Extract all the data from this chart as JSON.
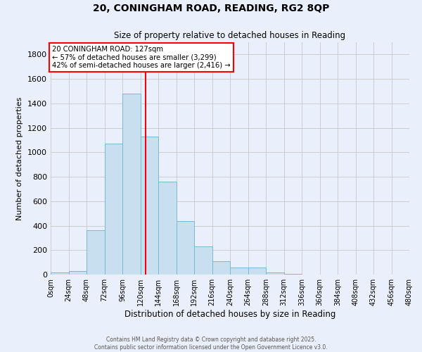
{
  "title": "20, CONINGHAM ROAD, READING, RG2 8QP",
  "subtitle": "Size of property relative to detached houses in Reading",
  "xlabel": "Distribution of detached houses by size in Reading",
  "ylabel": "Number of detached properties",
  "bin_edges": [
    0,
    24,
    48,
    72,
    96,
    120,
    144,
    168,
    192,
    216,
    240,
    264,
    288,
    312,
    336,
    360,
    384,
    408,
    432,
    456,
    480
  ],
  "bar_heights": [
    15,
    30,
    360,
    1070,
    1480,
    1130,
    760,
    440,
    230,
    110,
    55,
    55,
    15,
    5,
    0,
    0,
    0,
    0,
    0,
    0
  ],
  "bar_color": "#c8dff0",
  "bar_edge_color": "#7bb8d8",
  "vline_x": 127,
  "vline_color": "red",
  "annotation_title": "20 CONINGHAM ROAD: 127sqm",
  "annotation_line1": "← 57% of detached houses are smaller (3,299)",
  "annotation_line2": "42% of semi-detached houses are larger (2,416) →",
  "annotation_box_color": "white",
  "annotation_box_edge_color": "red",
  "bg_color": "#eaf0fb",
  "grid_color": "#c8c8c8",
  "ylim": [
    0,
    1900
  ],
  "yticks": [
    0,
    200,
    400,
    600,
    800,
    1000,
    1200,
    1400,
    1600,
    1800
  ],
  "xtick_labels": [
    "0sqm",
    "24sqm",
    "48sqm",
    "72sqm",
    "96sqm",
    "120sqm",
    "144sqm",
    "168sqm",
    "192sqm",
    "216sqm",
    "240sqm",
    "264sqm",
    "288sqm",
    "312sqm",
    "336sqm",
    "360sqm",
    "384sqm",
    "408sqm",
    "432sqm",
    "456sqm",
    "480sqm"
  ],
  "footer_line1": "Contains HM Land Registry data © Crown copyright and database right 2025.",
  "footer_line2": "Contains public sector information licensed under the Open Government Licence v3.0."
}
